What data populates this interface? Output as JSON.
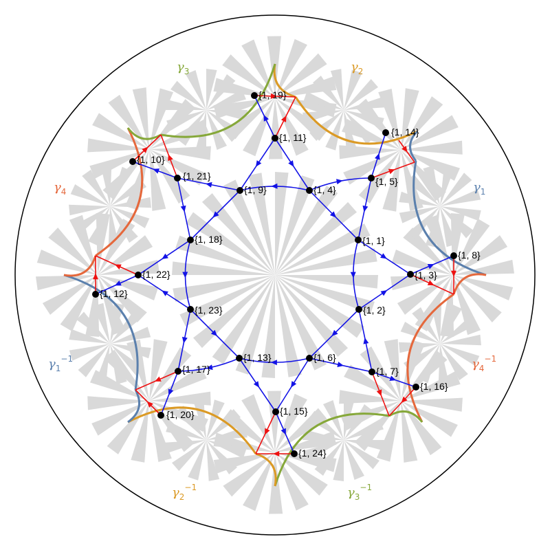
{
  "colors": {
    "gamma1": "#5b80ad",
    "gamma2": "#db9a25",
    "gamma3": "#86a83a",
    "gamma4": "#e5683c",
    "blue_edge": "#1313e6",
    "red_edge": "#ee1111",
    "vertex": "#000000",
    "tiling": "#d9d9d9"
  },
  "generators": [
    {
      "key": "g1",
      "base": "γ",
      "sub": "1",
      "sup": "",
      "color": "gamma1"
    },
    {
      "key": "g2",
      "base": "γ",
      "sub": "2",
      "sup": "",
      "color": "gamma2"
    },
    {
      "key": "g3",
      "base": "γ",
      "sub": "3",
      "sup": "",
      "color": "gamma3"
    },
    {
      "key": "g4",
      "base": "γ",
      "sub": "4",
      "sup": "",
      "color": "gamma4"
    },
    {
      "key": "g1inv",
      "base": "γ",
      "sub": "1",
      "sup": "−1",
      "color": "gamma1"
    },
    {
      "key": "g2inv",
      "base": "γ",
      "sub": "2",
      "sup": "−1",
      "color": "gamma2"
    },
    {
      "key": "g3inv",
      "base": "γ",
      "sub": "3",
      "sup": "−1",
      "color": "gamma3"
    },
    {
      "key": "g4inv",
      "base": "γ",
      "sub": "4",
      "sup": "−1",
      "color": "gamma4"
    }
  ],
  "vertices": [
    {
      "id": "v1",
      "label": "{1, 1}"
    },
    {
      "id": "v2",
      "label": "{1, 2}"
    },
    {
      "id": "v3",
      "label": "{1, 3}"
    },
    {
      "id": "v4",
      "label": "{1, 4}"
    },
    {
      "id": "v5",
      "label": "{1, 5}"
    },
    {
      "id": "v6",
      "label": "{1, 6}"
    },
    {
      "id": "v7",
      "label": "{1, 7}"
    },
    {
      "id": "v8",
      "label": "{1, 8}"
    },
    {
      "id": "v9",
      "label": "{1, 9}"
    },
    {
      "id": "v10",
      "label": "{1, 10}"
    },
    {
      "id": "v11",
      "label": "{1, 11}"
    },
    {
      "id": "v12",
      "label": "{1, 12}"
    },
    {
      "id": "v13",
      "label": "{1, 13}"
    },
    {
      "id": "v14",
      "label": "{1, 14}"
    },
    {
      "id": "v15",
      "label": "{1, 15}"
    },
    {
      "id": "v16",
      "label": "{1, 16}"
    },
    {
      "id": "v17",
      "label": "{1, 17}"
    },
    {
      "id": "v18",
      "label": "{1, 18}"
    },
    {
      "id": "v19",
      "label": "{1, 19}"
    },
    {
      "id": "v20",
      "label": "{1, 20}"
    },
    {
      "id": "v21",
      "label": "{1, 21}"
    },
    {
      "id": "v22",
      "label": "{1, 22}"
    },
    {
      "id": "v23",
      "label": "{1, 23}"
    },
    {
      "id": "v24",
      "label": "{1, 24}"
    }
  ]
}
